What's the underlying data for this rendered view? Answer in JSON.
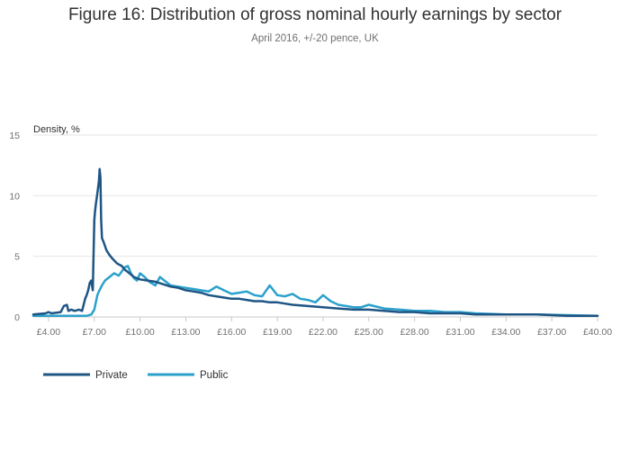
{
  "title": "Figure 16: Distribution of gross nominal hourly earnings by sector",
  "subtitle": "April 2016, +/-20 pence, UK",
  "colors": {
    "private": "#1e5584",
    "public": "#2ba1cc",
    "grid": "#e6e6e6"
  },
  "chart_data": {
    "type": "line",
    "title": "Figure 16: Distribution of gross nominal hourly earnings by sector",
    "subtitle": "April 2016, +/-20 pence, UK",
    "ylabel": "Density, %",
    "xlabel": "",
    "xlim": [
      3.0,
      40.0
    ],
    "ylim": [
      0,
      15
    ],
    "x_ticks": [
      4,
      7,
      10,
      13,
      16,
      19,
      22,
      25,
      28,
      31,
      34,
      37,
      40
    ],
    "x_tick_labels": [
      "£4.00",
      "£7.00",
      "£10.00",
      "£13.00",
      "£16.00",
      "£19.00",
      "£22.00",
      "£25.00",
      "£28.00",
      "£31.00",
      "£34.00",
      "£37.00",
      "£40.00"
    ],
    "y_ticks": [
      0,
      5,
      10,
      15
    ],
    "y_tick_labels": [
      "0",
      "5",
      "10",
      "15"
    ],
    "grid": true,
    "legend_position": "bottom-left",
    "series": [
      {
        "name": "Private",
        "color": "#1e5584",
        "x": [
          3.0,
          3.8,
          4.0,
          4.2,
          4.8,
          5.0,
          5.2,
          5.3,
          5.5,
          5.7,
          6.0,
          6.2,
          6.4,
          6.5,
          6.6,
          6.7,
          6.8,
          6.9,
          7.0,
          7.05,
          7.1,
          7.2,
          7.3,
          7.35,
          7.4,
          7.45,
          7.5,
          7.6,
          7.8,
          8.0,
          8.2,
          8.5,
          8.8,
          9.0,
          9.3,
          9.6,
          10.0,
          10.5,
          11.0,
          11.5,
          12.0,
          12.5,
          13.0,
          13.5,
          14.0,
          14.5,
          15.0,
          15.5,
          16.0,
          16.5,
          17.0,
          17.5,
          18.0,
          18.5,
          19.0,
          19.5,
          20.0,
          21.0,
          22.0,
          23.0,
          24.0,
          25.0,
          26.0,
          27.0,
          28.0,
          29.0,
          30.0,
          31.0,
          32.0,
          34.0,
          36.0,
          38.0,
          40.0
        ],
        "y": [
          0.2,
          0.3,
          0.4,
          0.3,
          0.4,
          0.9,
          1.0,
          0.5,
          0.6,
          0.5,
          0.6,
          0.5,
          1.5,
          1.8,
          2.2,
          2.8,
          3.0,
          2.2,
          8.0,
          8.7,
          9.3,
          10.2,
          11.2,
          12.2,
          11.5,
          8.0,
          6.5,
          6.2,
          5.5,
          5.1,
          4.8,
          4.4,
          4.2,
          3.9,
          3.6,
          3.3,
          3.1,
          3.0,
          2.9,
          2.7,
          2.5,
          2.4,
          2.2,
          2.1,
          2.0,
          1.8,
          1.7,
          1.6,
          1.5,
          1.5,
          1.4,
          1.3,
          1.3,
          1.2,
          1.2,
          1.1,
          1.0,
          0.9,
          0.8,
          0.7,
          0.6,
          0.6,
          0.5,
          0.4,
          0.4,
          0.3,
          0.3,
          0.3,
          0.2,
          0.2,
          0.2,
          0.1,
          0.1
        ]
      },
      {
        "name": "Public",
        "color": "#2ba1cc",
        "x": [
          3.0,
          4.0,
          5.0,
          6.0,
          6.5,
          6.8,
          7.0,
          7.1,
          7.2,
          7.3,
          7.5,
          7.7,
          8.0,
          8.3,
          8.6,
          9.0,
          9.2,
          9.4,
          9.6,
          9.8,
          10.0,
          10.3,
          10.6,
          11.0,
          11.3,
          11.6,
          12.0,
          12.5,
          13.0,
          13.5,
          14.0,
          14.5,
          15.0,
          15.5,
          16.0,
          16.5,
          17.0,
          17.5,
          18.0,
          18.5,
          19.0,
          19.5,
          20.0,
          20.5,
          21.0,
          21.5,
          22.0,
          22.5,
          23.0,
          23.5,
          24.0,
          24.5,
          25.0,
          26.0,
          27.0,
          28.0,
          29.0,
          30.0,
          31.0,
          32.0,
          34.0,
          36.0,
          38.0,
          40.0
        ],
        "y": [
          0.1,
          0.1,
          0.1,
          0.1,
          0.1,
          0.2,
          0.6,
          1.2,
          1.8,
          2.1,
          2.6,
          3.0,
          3.3,
          3.6,
          3.4,
          4.1,
          4.2,
          3.6,
          3.2,
          3.0,
          3.6,
          3.3,
          2.9,
          2.6,
          3.3,
          3.0,
          2.6,
          2.5,
          2.4,
          2.3,
          2.2,
          2.1,
          2.5,
          2.2,
          1.9,
          2.0,
          2.1,
          1.8,
          1.7,
          2.6,
          1.8,
          1.7,
          1.9,
          1.5,
          1.4,
          1.2,
          1.8,
          1.3,
          1.0,
          0.9,
          0.8,
          0.8,
          1.0,
          0.7,
          0.6,
          0.5,
          0.5,
          0.4,
          0.4,
          0.3,
          0.2,
          0.2,
          0.15,
          0.1
        ]
      }
    ]
  }
}
